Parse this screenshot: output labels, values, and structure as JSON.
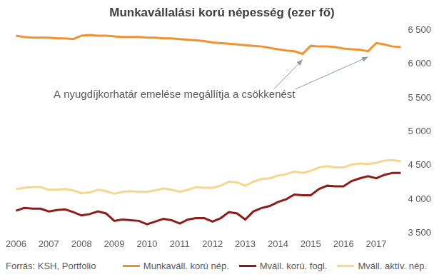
{
  "chart_data": {
    "type": "line",
    "title": "Munkavállalási korú népesség (ezer fő)",
    "source": "Forrás: KSH, Portfolio",
    "annotation": "A nyugdíjkorhatár emelése megállítja a csökkenést",
    "categories": [
      "2006",
      null,
      null,
      null,
      "2007",
      null,
      null,
      null,
      "2008",
      null,
      null,
      null,
      "2009",
      null,
      null,
      null,
      "2010",
      null,
      null,
      null,
      "2011",
      null,
      null,
      null,
      "2012",
      null,
      null,
      null,
      "2013",
      null,
      null,
      null,
      "2014",
      null,
      null,
      null,
      "2015",
      null,
      null,
      null,
      "2016",
      null,
      null,
      null,
      "2017",
      null,
      null,
      null
    ],
    "series": [
      {
        "name": "Munkaváll. korú nép.",
        "color": "#f0922f",
        "values": [
          6420,
          6400,
          6390,
          6390,
          6390,
          6380,
          6380,
          6370,
          6420,
          6430,
          6420,
          6420,
          6410,
          6400,
          6400,
          6400,
          6390,
          6390,
          6380,
          6380,
          6370,
          6360,
          6350,
          6340,
          6320,
          6310,
          6300,
          6290,
          6280,
          6270,
          6260,
          6240,
          6220,
          6200,
          6190,
          6150,
          6270,
          6260,
          6260,
          6250,
          6230,
          6220,
          6210,
          6190,
          6310,
          6290,
          6260,
          6250
        ]
      },
      {
        "name": "Mváll. korú. fogl.",
        "color": "#8b1e1a",
        "values": [
          3830,
          3870,
          3860,
          3860,
          3820,
          3840,
          3850,
          3810,
          3760,
          3780,
          3820,
          3790,
          3680,
          3700,
          3690,
          3680,
          3630,
          3670,
          3710,
          3690,
          3640,
          3700,
          3720,
          3720,
          3670,
          3720,
          3810,
          3790,
          3700,
          3820,
          3870,
          3900,
          3960,
          4000,
          4070,
          4060,
          4060,
          4150,
          4200,
          4190,
          4190,
          4270,
          4310,
          4340,
          4310,
          4360,
          4390,
          4390
        ]
      },
      {
        "name": "Mváll. aktív. nép.",
        "color": "#f5d68c",
        "values": [
          4150,
          4170,
          4180,
          4180,
          4140,
          4140,
          4150,
          4130,
          4090,
          4100,
          4140,
          4120,
          4080,
          4110,
          4120,
          4110,
          4110,
          4130,
          4160,
          4140,
          4110,
          4140,
          4180,
          4170,
          4170,
          4200,
          4260,
          4250,
          4200,
          4260,
          4300,
          4310,
          4350,
          4370,
          4410,
          4390,
          4420,
          4470,
          4490,
          4470,
          4470,
          4510,
          4530,
          4520,
          4540,
          4570,
          4580,
          4560
        ]
      }
    ],
    "ylim": [
      3500,
      6500
    ],
    "yticks": [
      {
        "value": 3500,
        "label": "3 500"
      },
      {
        "value": 4000,
        "label": "4 000"
      },
      {
        "value": 4500,
        "label": "4 500"
      },
      {
        "value": 5000,
        "label": "5 000"
      },
      {
        "value": 5500,
        "label": "5 500"
      },
      {
        "value": 6000,
        "label": "6 000"
      },
      {
        "value": 6500,
        "label": "6 500"
      }
    ],
    "grid": false,
    "legend": "bottom"
  }
}
